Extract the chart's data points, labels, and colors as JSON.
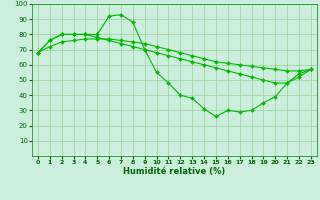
{
  "xlabel": "Humidité relative (%)",
  "background_color": "#cceedd",
  "grid_color": "#99cc99",
  "line_color": "#00bb00",
  "line1": [
    68,
    76,
    80,
    80,
    80,
    80,
    92,
    93,
    88,
    70,
    55,
    48,
    40,
    38,
    31,
    26,
    30,
    29,
    30,
    35,
    39,
    48,
    54,
    57
  ],
  "line2": [
    68,
    76,
    80,
    80,
    80,
    78,
    76,
    74,
    72,
    70,
    68,
    66,
    64,
    62,
    60,
    58,
    56,
    54,
    52,
    50,
    48,
    48,
    52,
    57
  ],
  "line3": [
    68,
    72,
    75,
    76,
    77,
    77,
    77,
    76,
    75,
    74,
    72,
    70,
    68,
    66,
    64,
    62,
    61,
    60,
    59,
    58,
    57,
    56,
    56,
    57
  ],
  "xlim": [
    -0.5,
    23.5
  ],
  "ylim": [
    0,
    100
  ],
  "xticks": [
    0,
    1,
    2,
    3,
    4,
    5,
    6,
    7,
    8,
    9,
    10,
    11,
    12,
    13,
    14,
    15,
    16,
    17,
    18,
    19,
    20,
    21,
    22,
    23
  ],
  "yticks": [
    10,
    20,
    30,
    40,
    50,
    60,
    70,
    80,
    90,
    100
  ]
}
